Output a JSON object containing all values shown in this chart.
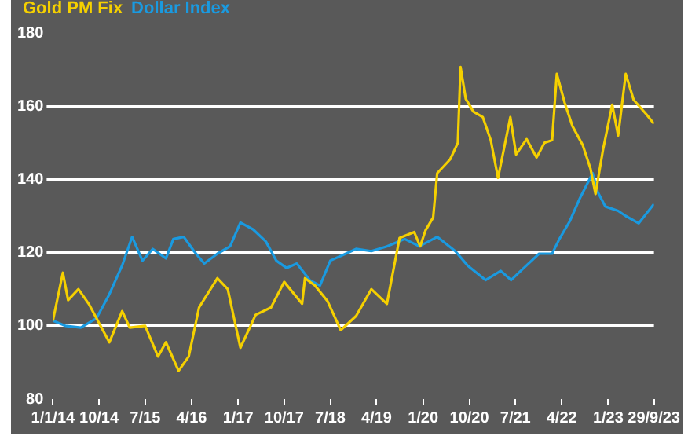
{
  "chart_data": {
    "type": "line",
    "legend": "top left",
    "grid": "y",
    "marker": "none",
    "line_style": "solid",
    "xlim": [
      "2014-01-01",
      "2023-09-29"
    ],
    "xticks": [
      {
        "value": "2014-01-01",
        "label": "1/1/14"
      },
      {
        "value": "2014-10-01",
        "label": "10/14"
      },
      {
        "value": "2015-07-01",
        "label": "7/15"
      },
      {
        "value": "2016-04-01",
        "label": "4/16"
      },
      {
        "value": "2017-01-01",
        "label": "1/17"
      },
      {
        "value": "2017-10-01",
        "label": "10/17"
      },
      {
        "value": "2018-07-01",
        "label": "7/18"
      },
      {
        "value": "2019-04-01",
        "label": "4/19"
      },
      {
        "value": "2020-01-01",
        "label": "1/20"
      },
      {
        "value": "2020-10-01",
        "label": "10/20"
      },
      {
        "value": "2021-07-01",
        "label": "7/21"
      },
      {
        "value": "2022-04-01",
        "label": "4/22"
      },
      {
        "value": "2023-01-01",
        "label": "1/23"
      },
      {
        "value": "2023-09-29",
        "label": "29/9/23"
      }
    ],
    "ylim": [
      80,
      180
    ],
    "yticks": [
      80,
      100,
      120,
      140,
      160,
      180
    ],
    "series": [
      {
        "name": "Gold PM Fix",
        "color": "#f5d000",
        "x": [
          "2014-01-01",
          "2014-03-01",
          "2014-04-01",
          "2014-06-01",
          "2014-08-01",
          "2014-12-01",
          "2015-02-15",
          "2015-04-01",
          "2015-07-01",
          "2015-09-15",
          "2015-11-01",
          "2016-01-15",
          "2016-03-15",
          "2016-05-15",
          "2016-09-01",
          "2016-11-01",
          "2017-01-15",
          "2017-04-15",
          "2017-07-15",
          "2017-10-01",
          "2018-01-15",
          "2018-02-01",
          "2018-04-01",
          "2018-06-15",
          "2018-09-01",
          "2018-12-01",
          "2019-03-01",
          "2019-06-01",
          "2019-08-15",
          "2019-11-10",
          "2019-12-15",
          "2020-01-15",
          "2020-03-01",
          "2020-03-25",
          "2020-06-10",
          "2020-07-25",
          "2020-08-10",
          "2020-09-10",
          "2020-10-25",
          "2020-12-20",
          "2021-02-05",
          "2021-03-20",
          "2021-06-01",
          "2021-07-05",
          "2021-09-05",
          "2021-11-03",
          "2021-12-20",
          "2022-02-03",
          "2022-03-03",
          "2022-04-18",
          "2022-06-03",
          "2022-08-03",
          "2022-09-18",
          "2022-10-18",
          "2022-12-01",
          "2023-01-25",
          "2023-03-01",
          "2023-04-15",
          "2023-06-01",
          "2023-08-15",
          "2023-09-29"
        ],
        "values": [
          101.4,
          114.5,
          107,
          110,
          106,
          95.5,
          104,
          99.5,
          100,
          91.6,
          95.5,
          87.7,
          91.6,
          105,
          113,
          110,
          94,
          103,
          105,
          112,
          106,
          113,
          111,
          106.7,
          98.8,
          102.7,
          110,
          106,
          124,
          125.6,
          121.7,
          126,
          129.6,
          141.7,
          145.5,
          150,
          170.7,
          162,
          158.5,
          157,
          150.7,
          140.4,
          157,
          146.8,
          151,
          146,
          150,
          150.7,
          168.8,
          161,
          154.6,
          149.4,
          143,
          136,
          148,
          160.4,
          152,
          168.8,
          161.7,
          157.8,
          155.2
        ]
      },
      {
        "name": "Dollar Index",
        "color": "#1a9ae0",
        "x": [
          "2014-01-01",
          "2014-03-15",
          "2014-06-15",
          "2014-09-15",
          "2014-12-01",
          "2015-02-15",
          "2015-04-15",
          "2015-06-15",
          "2015-08-15",
          "2015-11-01",
          "2015-12-15",
          "2016-02-15",
          "2016-04-15",
          "2016-06-15",
          "2016-09-01",
          "2016-11-15",
          "2017-01-15",
          "2017-04-01",
          "2017-06-15",
          "2017-08-15",
          "2017-10-15",
          "2017-12-15",
          "2018-03-01",
          "2018-05-01",
          "2018-07-01",
          "2018-10-01",
          "2018-12-01",
          "2019-03-01",
          "2019-06-01",
          "2019-09-15",
          "2019-12-10",
          "2020-03-25",
          "2020-07-10",
          "2020-09-20",
          "2021-01-05",
          "2021-04-05",
          "2021-06-05",
          "2021-08-20",
          "2021-11-18",
          "2022-02-03",
          "2022-03-18",
          "2022-05-18",
          "2022-07-15",
          "2022-10-01",
          "2022-11-01",
          "2022-12-15",
          "2023-03-01",
          "2023-04-15",
          "2023-07-01",
          "2023-09-29"
        ],
        "values": [
          101.4,
          100,
          99.5,
          102,
          108.6,
          116.5,
          124.3,
          117.8,
          121,
          118.4,
          123.7,
          124.3,
          120.4,
          117,
          119.7,
          121.7,
          128.2,
          126.3,
          123,
          117.8,
          115.8,
          117,
          112.5,
          111,
          117.8,
          119.7,
          121,
          120.4,
          121.7,
          123.7,
          121.7,
          124.3,
          120.4,
          116.5,
          112.5,
          115,
          112.5,
          115.8,
          119.7,
          119.7,
          123.7,
          128.5,
          134.6,
          141.7,
          136.5,
          132.6,
          131.4,
          130,
          128,
          133.3
        ]
      }
    ]
  }
}
